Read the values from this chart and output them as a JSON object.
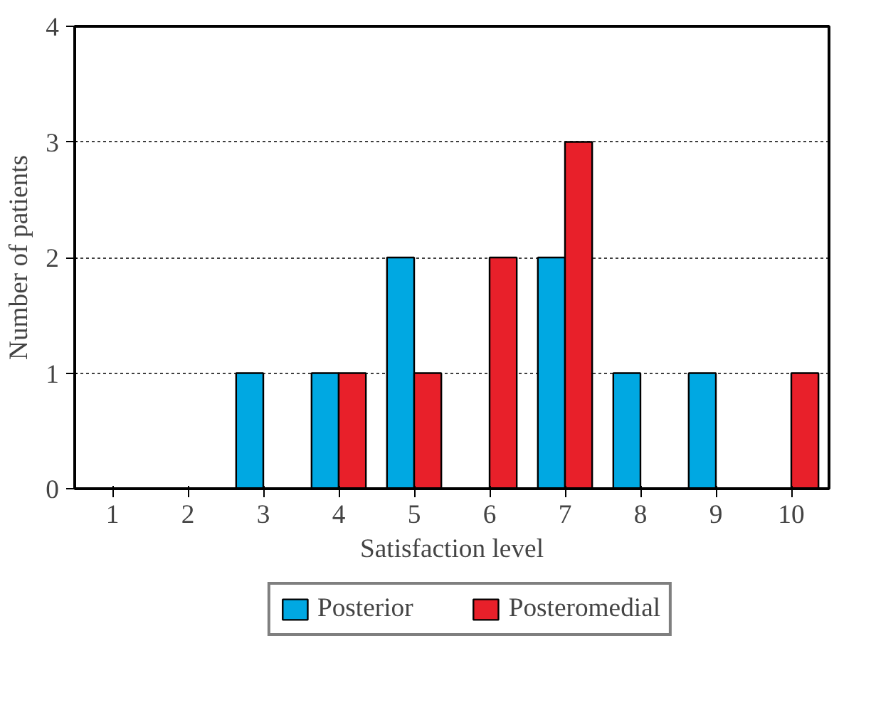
{
  "chart_data": {
    "type": "bar",
    "xlabel": "Satisfaction level",
    "ylabel": "Number of patients",
    "categories": [
      "1",
      "2",
      "3",
      "4",
      "5",
      "6",
      "7",
      "8",
      "9",
      "10"
    ],
    "series": [
      {
        "name": "Posterior",
        "color": "#00a8e2",
        "values": [
          0,
          0,
          1,
          1,
          2,
          0,
          2,
          1,
          1,
          0
        ]
      },
      {
        "name": "Posteromedial",
        "color": "#e8202a",
        "values": [
          0,
          0,
          0,
          1,
          1,
          2,
          3,
          0,
          0,
          1
        ]
      }
    ],
    "ylim": [
      0,
      4
    ],
    "yticks": [
      0,
      1,
      2,
      3,
      4
    ],
    "grid": "y",
    "legend": "bottom"
  }
}
